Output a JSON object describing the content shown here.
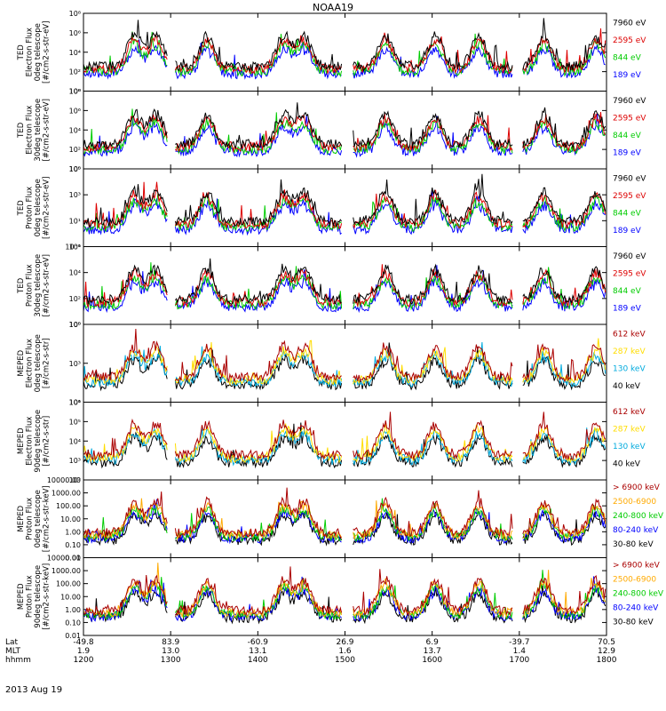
{
  "chart_data": {
    "type": "line",
    "title": "NOAA19",
    "date_label": "2013 Aug 19",
    "x_axis": {
      "row_labels": [
        "Lat",
        "MLT",
        "hhmm"
      ],
      "ticks": [
        {
          "lat": "-49.8",
          "mlt": "1.9",
          "hhmm": "1200"
        },
        {
          "lat": "83.9",
          "mlt": "13.0",
          "hhmm": "1300"
        },
        {
          "lat": "-60.9",
          "mlt": "13.1",
          "hhmm": "1400"
        },
        {
          "lat": "26.9",
          "mlt": "1.6",
          "hhmm": "1500"
        },
        {
          "lat": "6.9",
          "mlt": "13.7",
          "hhmm": "1600"
        },
        {
          "lat": "-39.7",
          "mlt": "1.4",
          "hhmm": "1700"
        },
        {
          "lat": "70.5",
          "mlt": "12.9",
          "hhmm": "1800"
        }
      ]
    },
    "pass_centers_hhmm": [
      "1235",
      "1250",
      "1325",
      "1418",
      "1432",
      "1528",
      "1602",
      "1632",
      "1717",
      "1753"
    ],
    "panels": [
      {
        "ylabel": [
          "TED",
          "Electron Flux",
          "0deg telescope",
          "[#/cm2-s-str-eV]"
        ],
        "ytick_labels": [
          "10⁰",
          "10²",
          "10⁴",
          "10⁶",
          "10⁸"
        ],
        "log_min": 0,
        "log_max": 8,
        "legend": [
          {
            "label": "7960 eV",
            "color": "#000000"
          },
          {
            "label": "2595 eV",
            "color": "#dd0000"
          },
          {
            "label": "844 eV",
            "color": "#00cc00"
          },
          {
            "label": "189 eV",
            "color": "#0000ff"
          }
        ]
      },
      {
        "ylabel": [
          "TED",
          "Electron Flux",
          "30deg telescope",
          "[#/cm2-s-str-eV]"
        ],
        "ytick_labels": [
          "10⁰",
          "10²",
          "10⁴",
          "10⁶",
          "10⁸"
        ],
        "log_min": 0,
        "log_max": 8,
        "legend": [
          {
            "label": "7960 eV",
            "color": "#000000"
          },
          {
            "label": "2595 eV",
            "color": "#dd0000"
          },
          {
            "label": "844 eV",
            "color": "#00cc00"
          },
          {
            "label": "189 eV",
            "color": "#0000ff"
          }
        ]
      },
      {
        "ylabel": [
          "TED",
          "Proton Flux",
          "0deg telescope",
          "[#/cm2-s-str-eV]"
        ],
        "ytick_labels": [
          "10⁻¹",
          "10¹",
          "10³",
          "10⁵"
        ],
        "log_min": -1,
        "log_max": 5,
        "legend": [
          {
            "label": "7960 eV",
            "color": "#000000"
          },
          {
            "label": "2595 eV",
            "color": "#dd0000"
          },
          {
            "label": "844 eV",
            "color": "#00cc00"
          },
          {
            "label": "189 eV",
            "color": "#0000ff"
          }
        ]
      },
      {
        "ylabel": [
          "TED",
          "Proton Flux",
          "30deg telescope",
          "[#/cm2-s-str-eV]"
        ],
        "ytick_labels": [
          "10⁰",
          "10²",
          "10⁴",
          "10⁶"
        ],
        "log_min": 0,
        "log_max": 6,
        "legend": [
          {
            "label": "7960 eV",
            "color": "#000000"
          },
          {
            "label": "2595 eV",
            "color": "#dd0000"
          },
          {
            "label": "844 eV",
            "color": "#00cc00"
          },
          {
            "label": "189 eV",
            "color": "#0000ff"
          }
        ]
      },
      {
        "ylabel": [
          "MEPED",
          "Electron Flux",
          "0deg telescope",
          "[#/cm2-s-str]"
        ],
        "ytick_labels": [
          "10¹",
          "10³",
          "10⁵"
        ],
        "log_min": 1,
        "log_max": 6,
        "legend": [
          {
            "label": "612 keV",
            "color": "#aa0000"
          },
          {
            "label": "287 keV",
            "color": "#ffdd00"
          },
          {
            "label": "130 keV",
            "color": "#00aadd"
          },
          {
            "label": "40 keV",
            "color": "#000000"
          }
        ]
      },
      {
        "ylabel": [
          "MEPED",
          "Electron Flux",
          "90deg telescope",
          "[#/cm2-s-str]"
        ],
        "ytick_labels": [
          "10²",
          "10³",
          "10⁴",
          "10⁵",
          "10⁶"
        ],
        "log_min": 1.2,
        "log_max": 6,
        "legend": [
          {
            "label": "612 keV",
            "color": "#aa0000"
          },
          {
            "label": "287 keV",
            "color": "#ffdd00"
          },
          {
            "label": "130 keV",
            "color": "#00aadd"
          },
          {
            "label": "40 keV",
            "color": "#000000"
          }
        ]
      },
      {
        "ylabel": [
          "MEPED",
          "Proton Flux",
          "0deg telescope",
          "[#/cm2-s-str-keV]"
        ],
        "ytick_labels": [
          "0.01",
          "0.10",
          "1.00",
          "10.00",
          "100.00",
          "1000.00",
          "10000.00"
        ],
        "log_min": -2,
        "log_max": 4,
        "legend": [
          {
            "label": "> 6900 keV",
            "color": "#aa0000"
          },
          {
            "label": "2500-6900",
            "color": "#ffaa00"
          },
          {
            "label": "240-800 keV",
            "color": "#00cc00"
          },
          {
            "label": "80-240 keV",
            "color": "#0000ff"
          },
          {
            "label": "30-80 keV",
            "color": "#000000"
          }
        ]
      },
      {
        "ylabel": [
          "MEPED",
          "Proton Flux",
          "90deg telescope",
          "[#/cm2-s-str-keV]"
        ],
        "ytick_labels": [
          "0.01",
          "0.10",
          "1.00",
          "10.00",
          "100.00",
          "1000.00",
          "10000.00"
        ],
        "log_min": -2,
        "log_max": 4,
        "legend": [
          {
            "label": "> 6900 keV",
            "color": "#aa0000"
          },
          {
            "label": "2500-6900",
            "color": "#ffaa00"
          },
          {
            "label": "240-800 keV",
            "color": "#00cc00"
          },
          {
            "label": "80-240 keV",
            "color": "#0000ff"
          },
          {
            "label": "30-80 keV",
            "color": "#000000"
          }
        ]
      }
    ]
  }
}
